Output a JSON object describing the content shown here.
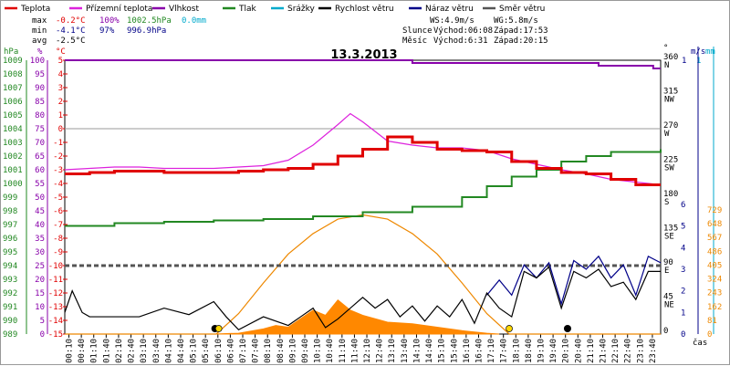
{
  "chart_data": {
    "type": "line",
    "title": "13.3.2013",
    "legend": [
      {
        "label": "Teplota",
        "color": "#e00000"
      },
      {
        "label": "Přízemní teplota",
        "color": "#dd22dd"
      },
      {
        "label": "Vlhkost",
        "color": "#8800aa"
      },
      {
        "label": "Tlak",
        "color": "#228822"
      },
      {
        "label": "Srážky",
        "color": "#00aacc"
      },
      {
        "label": "Rychlost větru",
        "color": "#000000"
      },
      {
        "label": "Náraz větru",
        "color": "#000088"
      },
      {
        "label": "Směr větru",
        "color": "#555555"
      }
    ],
    "stats": {
      "max_label": "max",
      "max_temp": "-0.2°C",
      "max_hum": "100%",
      "max_press": "1002.5hPa",
      "max_rain": "0.0mm",
      "min_label": "min",
      "min_temp": "-4.1°C",
      "min_hum": "97%",
      "min_press": "996.9hPa",
      "avg_label": "avg",
      "avg_temp": "-2.5°C"
    },
    "wind_info": {
      "ws": "WS:4.9m/s",
      "wg": "WG:5.8m/s"
    },
    "sun": {
      "label": "Slunce",
      "rise": "Východ:06:08",
      "set": "Západ:17:53"
    },
    "moon": {
      "label": "Měsíc",
      "rise": "Východ:6:31",
      "set": "Západ:20:15"
    },
    "xlabel": "čas",
    "x_ticks": [
      "00:10",
      "00:40",
      "01:10",
      "01:40",
      "02:10",
      "02:40",
      "03:10",
      "03:40",
      "04:10",
      "04:40",
      "05:10",
      "05:40",
      "06:10",
      "06:40",
      "07:10",
      "07:40",
      "08:10",
      "08:40",
      "09:10",
      "09:40",
      "10:10",
      "10:40",
      "11:10",
      "11:40",
      "12:10",
      "12:40",
      "13:10",
      "13:40",
      "14:10",
      "14:40",
      "15:10",
      "15:40",
      "16:10",
      "16:40",
      "17:10",
      "17:40",
      "18:10",
      "18:40",
      "19:10",
      "19:40",
      "20:10",
      "20:40",
      "21:10",
      "21:40",
      "22:10",
      "22:40",
      "23:10",
      "23:40"
    ],
    "axes": {
      "press": {
        "title": "hPa",
        "ticks": [
          "1009",
          "1008",
          "1007",
          "1006",
          "1005",
          "1004",
          "1003",
          "1002",
          "1001",
          "1000",
          "999",
          "998",
          "997",
          "996",
          "995",
          "994",
          "993",
          "992",
          "991",
          "990",
          "989"
        ]
      },
      "hum": {
        "title": "%",
        "ticks": [
          "100",
          "95",
          "90",
          "85",
          "80",
          "75",
          "70",
          "65",
          "60",
          "55",
          "50",
          "45",
          "40",
          "35",
          "30",
          "25",
          "20",
          "15",
          "10",
          "5",
          "0"
        ]
      },
      "temp": {
        "title": "°C",
        "ticks": [
          "5",
          "4",
          "3",
          "2",
          "1",
          "0",
          "-1",
          "-2",
          "-3",
          "-4",
          "-5",
          "-6",
          "-7",
          "-8",
          "-9",
          "-10",
          "-11",
          "-12",
          "-13",
          "-14",
          "-15"
        ]
      },
      "dir": {
        "title": "°",
        "ticks": [
          {
            "v": "360",
            "d": "N"
          },
          {
            "v": "315",
            "d": "NW"
          },
          {
            "v": "270",
            "d": "W"
          },
          {
            "v": "225",
            "d": "SW"
          },
          {
            "v": "180",
            "d": "S"
          },
          {
            "v": "135",
            "d": "SE"
          },
          {
            "v": "90",
            "d": "E"
          },
          {
            "v": "45",
            "d": "NE"
          },
          {
            "v": "0",
            "d": ""
          }
        ]
      },
      "speed": {
        "title": "m/s",
        "top": "1",
        "ticks": [
          "6",
          "5",
          "4",
          "3",
          "2",
          "1",
          "0"
        ]
      },
      "rain": {
        "title": "mm",
        "top": "1"
      },
      "rad": {
        "ticks": [
          "729",
          "648",
          "567",
          "486",
          "405",
          "324",
          "243",
          "162",
          "81",
          "0"
        ]
      }
    },
    "series": {
      "temp": [
        [
          0,
          -3.3
        ],
        [
          1,
          -3.2
        ],
        [
          2,
          -3.1
        ],
        [
          3,
          -3.1
        ],
        [
          4,
          -3.2
        ],
        [
          5,
          -3.2
        ],
        [
          6,
          -3.2
        ],
        [
          7,
          -3.1
        ],
        [
          8,
          -3.0
        ],
        [
          9,
          -2.9
        ],
        [
          10,
          -2.6
        ],
        [
          11,
          -2.0
        ],
        [
          12,
          -1.5
        ],
        [
          13,
          -0.6
        ],
        [
          14,
          -1.0
        ],
        [
          15,
          -1.5
        ],
        [
          16,
          -1.6
        ],
        [
          17,
          -1.7
        ],
        [
          18,
          -2.4
        ],
        [
          19,
          -2.9
        ],
        [
          20,
          -3.2
        ],
        [
          21,
          -3.3
        ],
        [
          22,
          -3.7
        ],
        [
          23,
          -4.1
        ],
        [
          24,
          -4.1
        ]
      ],
      "ground_temp": [
        [
          0,
          -3.0
        ],
        [
          1,
          -2.9
        ],
        [
          2,
          -2.8
        ],
        [
          3,
          -2.8
        ],
        [
          4,
          -2.9
        ],
        [
          5,
          -2.9
        ],
        [
          6,
          -2.9
        ],
        [
          7,
          -2.8
        ],
        [
          8,
          -2.7
        ],
        [
          9,
          -2.3
        ],
        [
          10,
          -1.2
        ],
        [
          11,
          0.3
        ],
        [
          11.5,
          1.1
        ],
        [
          12,
          0.5
        ],
        [
          13,
          -0.9
        ],
        [
          14,
          -1.2
        ],
        [
          15,
          -1.4
        ],
        [
          16,
          -1.4
        ],
        [
          17,
          -1.6
        ],
        [
          18,
          -2.2
        ],
        [
          19,
          -2.6
        ],
        [
          20,
          -3.0
        ],
        [
          21,
          -3.3
        ],
        [
          22,
          -3.7
        ],
        [
          23,
          -3.9
        ],
        [
          24,
          -4.1
        ]
      ],
      "humidity": [
        [
          0,
          100
        ],
        [
          13.5,
          100
        ],
        [
          14,
          99
        ],
        [
          21,
          99
        ],
        [
          21.5,
          98
        ],
        [
          23.5,
          98
        ],
        [
          23.7,
          97
        ],
        [
          24,
          97
        ]
      ],
      "pressure": [
        [
          0,
          996.9
        ],
        [
          2,
          997.1
        ],
        [
          4,
          997.2
        ],
        [
          6,
          997.3
        ],
        [
          8,
          997.4
        ],
        [
          10,
          997.6
        ],
        [
          12,
          997.9
        ],
        [
          14,
          998.3
        ],
        [
          16,
          999.0
        ],
        [
          17,
          999.8
        ],
        [
          18,
          1000.5
        ],
        [
          19,
          1001.0
        ],
        [
          20,
          1001.6
        ],
        [
          21,
          1002.0
        ],
        [
          22,
          1002.3
        ],
        [
          24,
          1002.5
        ]
      ],
      "wind_speed": [
        [
          0,
          1.0
        ],
        [
          0.3,
          2.0
        ],
        [
          0.7,
          1.0
        ],
        [
          1,
          0.8
        ],
        [
          2,
          0.8
        ],
        [
          3,
          0.8
        ],
        [
          4,
          1.2
        ],
        [
          5,
          0.9
        ],
        [
          6,
          1.5
        ],
        [
          6.5,
          0.8
        ],
        [
          7,
          0.2
        ],
        [
          8,
          0.8
        ],
        [
          9,
          0.4
        ],
        [
          9.5,
          0.8
        ],
        [
          10,
          1.2
        ],
        [
          10.5,
          0.3
        ],
        [
          11,
          0.7
        ],
        [
          12,
          1.7
        ],
        [
          12.5,
          1.2
        ],
        [
          13,
          1.6
        ],
        [
          13.5,
          0.8
        ],
        [
          14,
          1.3
        ],
        [
          14.5,
          0.6
        ],
        [
          15,
          1.3
        ],
        [
          15.5,
          0.8
        ],
        [
          16,
          1.6
        ],
        [
          16.5,
          0.5
        ],
        [
          17,
          1.9
        ],
        [
          17.5,
          1.2
        ],
        [
          18,
          0.8
        ],
        [
          18.5,
          2.9
        ],
        [
          19,
          2.6
        ],
        [
          19.5,
          3.1
        ],
        [
          20,
          1.2
        ],
        [
          20.5,
          2.9
        ],
        [
          21,
          2.6
        ],
        [
          21.5,
          3.0
        ],
        [
          22,
          2.2
        ],
        [
          22.5,
          2.4
        ],
        [
          23,
          1.6
        ],
        [
          23.5,
          2.9
        ],
        [
          24,
          2.9
        ]
      ],
      "wind_gust": [
        [
          17,
          1.8
        ],
        [
          17.5,
          2.5
        ],
        [
          18,
          1.8
        ],
        [
          18.5,
          3.2
        ],
        [
          19,
          2.6
        ],
        [
          19.5,
          3.3
        ],
        [
          20,
          1.4
        ],
        [
          20.5,
          3.4
        ],
        [
          21,
          3.0
        ],
        [
          21.5,
          3.6
        ],
        [
          22,
          2.6
        ],
        [
          22.5,
          3.2
        ],
        [
          23,
          1.8
        ],
        [
          23.5,
          3.6
        ],
        [
          24,
          3.3
        ]
      ],
      "wind_dir": [
        [
          0,
          90
        ],
        [
          24,
          90
        ]
      ],
      "radiation": [
        [
          0,
          0
        ],
        [
          6.1,
          0
        ],
        [
          7,
          120
        ],
        [
          8,
          300
        ],
        [
          9,
          470
        ],
        [
          10,
          590
        ],
        [
          11,
          675
        ],
        [
          12,
          700
        ],
        [
          13,
          675
        ],
        [
          14,
          590
        ],
        [
          15,
          470
        ],
        [
          16,
          300
        ],
        [
          17,
          120
        ],
        [
          17.9,
          0
        ],
        [
          24,
          0
        ]
      ],
      "radiation_measured": [
        [
          6,
          0
        ],
        [
          7,
          5
        ],
        [
          8,
          30
        ],
        [
          8.5,
          50
        ],
        [
          9,
          40
        ],
        [
          9.5,
          90
        ],
        [
          10,
          140
        ],
        [
          10.5,
          110
        ],
        [
          11,
          200
        ],
        [
          11.5,
          140
        ],
        [
          12,
          110
        ],
        [
          13,
          70
        ],
        [
          14,
          60
        ],
        [
          15,
          40
        ],
        [
          16,
          20
        ],
        [
          17,
          5
        ],
        [
          17.5,
          0
        ]
      ]
    }
  }
}
